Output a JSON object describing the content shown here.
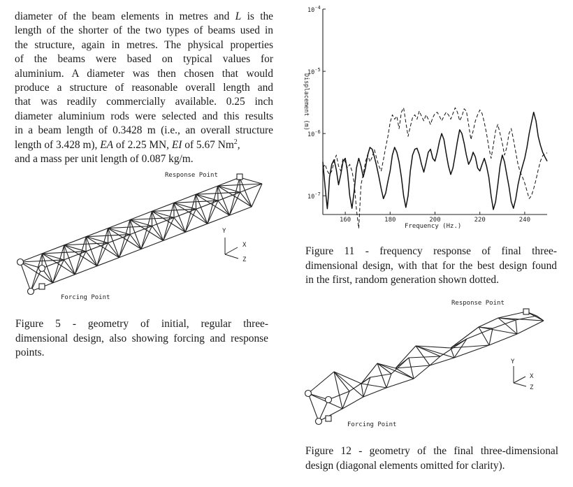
{
  "paragraph": {
    "lines": [
      "diameter of the beam elements in metres and ",
      "length of the shorter of the two types of beams used in",
      "the structure, again in metres.  The physical properties",
      "of the beams were based on typical values for",
      "aluminium.  A diameter was then chosen that would",
      "produce a structure of reasonable overall length and",
      "that was readily commercially available.  0.25 inch",
      "diameter aluminium rods were selected and this results",
      "in a beam length of 0.3428 m (i.e., an overall structure",
      "length of 3.428 m), ",
      "and a mass per unit length of 0.087 kg/m."
    ],
    "line1_var": "L",
    "line1_tail": " is the",
    "line10_ea": "EA",
    "line10_mid": " of 2.25 MN, ",
    "line10_ei": "EI",
    "line10_tail": " of 5.67 Nm",
    "line10_sup": "2",
    "line10_end": ","
  },
  "figure5": {
    "response_label": "Response Point",
    "forcing_label": "Forcing Point",
    "axis_y": "Y",
    "axis_x": "X",
    "axis_z": "Z",
    "caption_lines": [
      "Figure 5 - geometry of initial, regular three-",
      "dimensional design, also showing forcing and response",
      "points."
    ]
  },
  "figure11": {
    "caption_lines": [
      "Figure 11 - frequency response of final three-",
      "dimensional design, with that for the best design found",
      "in the first, random generation shown dotted."
    ]
  },
  "figure12": {
    "response_label": "Response Point",
    "forcing_label": "Forcing Point",
    "axis_y": "Y",
    "axis_x": "X",
    "axis_z": "Z",
    "caption_lines": [
      "Figure 12 - geometry of the final three-dimensional",
      "design (diagonal elements omitted for clarity)."
    ]
  },
  "chart_data": {
    "type": "line",
    "title": "",
    "xlabel": "Frequency (Hz.)",
    "ylabel": "Displacement (m)",
    "y_scale": "log",
    "xlim": [
      150,
      250
    ],
    "ylim": [
      5e-08,
      0.0001
    ],
    "x_ticks": [
      160,
      180,
      200,
      220,
      240
    ],
    "x_tick_labels": [
      "160",
      "180",
      "200",
      "220",
      "240"
    ],
    "y_ticks": [
      1e-07,
      1e-06,
      1e-05,
      0.0001
    ],
    "y_tick_labels": [
      "10-7",
      "10-6",
      "10-5",
      "10-4"
    ],
    "grid": false,
    "series": [
      {
        "style": "solid",
        "x": [
          150,
          151,
          152,
          152.5,
          153,
          154,
          155,
          156,
          157,
          158,
          159,
          160,
          161,
          162,
          163,
          164,
          165,
          166,
          167,
          168,
          169,
          170,
          171,
          172,
          173,
          174,
          175,
          176,
          177,
          178,
          179,
          180,
          181,
          182,
          183,
          184,
          185,
          186,
          187,
          188,
          189,
          190,
          191,
          192,
          193,
          194,
          195,
          196,
          197,
          198,
          199,
          200,
          201,
          202,
          203,
          204,
          205,
          206,
          207,
          208,
          209,
          210,
          211,
          212,
          213,
          214,
          215,
          216,
          217,
          218,
          219,
          220,
          221,
          222,
          223,
          224,
          225,
          226,
          227,
          228,
          229,
          230,
          231,
          232,
          233,
          234,
          235,
          236,
          237,
          238,
          239,
          240,
          241,
          242,
          243,
          244,
          245,
          246,
          247,
          248,
          249,
          250
        ],
        "y": [
          3.5e-07,
          1.4e-07,
          6.2e-08,
          1e-07,
          2e-07,
          3.2e-07,
          3.8e-07,
          2.6e-07,
          1.5e-07,
          2.2e-07,
          3.6e-07,
          4e-07,
          2.4e-07,
          1e-07,
          6.3e-08,
          1.2e-07,
          2.8e-07,
          4e-07,
          3e-07,
          2e-07,
          2.8e-07,
          4.5e-07,
          6e-07,
          5.6e-07,
          4.2e-07,
          3e-07,
          2e-07,
          1.3e-07,
          9e-08,
          1.1e-07,
          1.7e-07,
          2.5e-07,
          4.5e-07,
          6e-07,
          5e-07,
          3.5e-07,
          2e-07,
          1e-07,
          6.5e-08,
          1e-07,
          2.5e-07,
          4.5e-07,
          5.6e-07,
          5.8e-07,
          4.6e-07,
          3.2e-07,
          2.4e-07,
          3.4e-07,
          5e-07,
          5.6e-07,
          4e-07,
          3.6e-07,
          5e-07,
          7.5e-07,
          1e-06,
          8e-07,
          4.8e-07,
          3e-07,
          2.2e-07,
          2.8e-07,
          4.5e-07,
          7.5e-07,
          1.15e-06,
          1e-06,
          7e-07,
          4.5e-07,
          3.2e-07,
          3.8e-07,
          5e-07,
          4.2e-07,
          2.8e-07,
          2.5e-07,
          3.2e-07,
          4e-07,
          3e-07,
          2e-07,
          1e-07,
          6e-08,
          8e-08,
          1.5e-07,
          3e-07,
          4.5e-07,
          3.5e-07,
          2.2e-07,
          1.4e-07,
          8e-08,
          6.3e-08,
          9e-08,
          1.5e-07,
          2.2e-07,
          3e-07,
          4e-07,
          6e-07,
          1e-06,
          1.5e-06,
          2.2e-06,
          1.6e-06,
          9e-07,
          6.5e-07,
          5e-07,
          4.2e-07,
          3.6e-07
        ]
      },
      {
        "style": "dashed",
        "x": [
          150,
          151,
          152,
          153,
          154,
          155,
          156,
          157,
          158,
          159,
          160,
          161,
          162,
          163,
          164,
          165,
          166,
          167,
          168,
          169,
          170,
          171,
          172,
          173,
          174,
          175,
          176,
          177,
          178,
          179,
          180,
          181,
          182,
          183,
          184,
          185,
          186,
          187,
          188,
          189,
          190,
          191,
          192,
          193,
          194,
          195,
          196,
          197,
          198,
          199,
          200,
          201,
          202,
          203,
          204,
          205,
          206,
          207,
          208,
          209,
          210,
          211,
          212,
          213,
          214,
          215,
          216,
          217,
          218,
          219,
          220,
          221,
          222,
          223,
          224,
          225,
          226,
          227,
          228,
          229,
          230,
          231,
          232,
          233,
          234,
          235,
          236,
          237,
          238,
          239,
          240,
          241,
          242,
          243,
          244,
          245,
          246,
          247,
          248,
          249,
          250
        ],
        "y": [
          2.8e-07,
          3.2e-07,
          2.5e-07,
          2.2e-07,
          2.5e-07,
          3.5e-07,
          4.5e-07,
          3e-07,
          2.5e-07,
          4e-07,
          3.5e-07,
          2.8e-07,
          3.2e-07,
          2.5e-07,
          1.6e-07,
          6e-08,
          3e-08,
          1.5e-07,
          2.2e-07,
          3.5e-07,
          4.6e-07,
          3.5e-07,
          4.2e-07,
          5.5e-07,
          4e-07,
          3e-07,
          2.5e-07,
          3.8e-07,
          6e-07,
          9e-07,
          1.5e-06,
          2e-06,
          1.7e-06,
          1.9e-06,
          1.2e-06,
          2.2e-06,
          2.6e-06,
          1.5e-06,
          9e-07,
          1.3e-06,
          1.8e-06,
          2e-06,
          1.7e-06,
          2.3e-06,
          1.9e-06,
          1.6e-06,
          2e-06,
          1.7e-06,
          1.4e-06,
          1.8e-06,
          2.1e-06,
          2.2e-06,
          1.9e-06,
          1.6e-06,
          1.9e-06,
          2.2e-06,
          2e-06,
          1.7e-06,
          2.1e-06,
          2.6e-06,
          2.2e-06,
          1.6e-06,
          1.9e-06,
          2.5e-06,
          2.3e-06,
          1.4e-06,
          8e-07,
          1.1e-06,
          1.6e-06,
          2e-06,
          2.4e-06,
          2.1e-06,
          1.5e-06,
          1e-06,
          6e-07,
          4e-07,
          6.5e-07,
          1.1e-06,
          1.4e-06,
          1e-06,
          7e-07,
          4.5e-07,
          6e-07,
          1e-06,
          1.2e-06,
          8e-07,
          5e-07,
          3.2e-07,
          2.4e-07,
          2e-07,
          1.6e-07,
          1.2e-07,
          9e-08,
          1e-07,
          1.3e-07,
          1.8e-07,
          2.6e-07,
          3.6e-07,
          4.4e-07,
          4.7e-07,
          4.9e-07
        ]
      }
    ]
  }
}
